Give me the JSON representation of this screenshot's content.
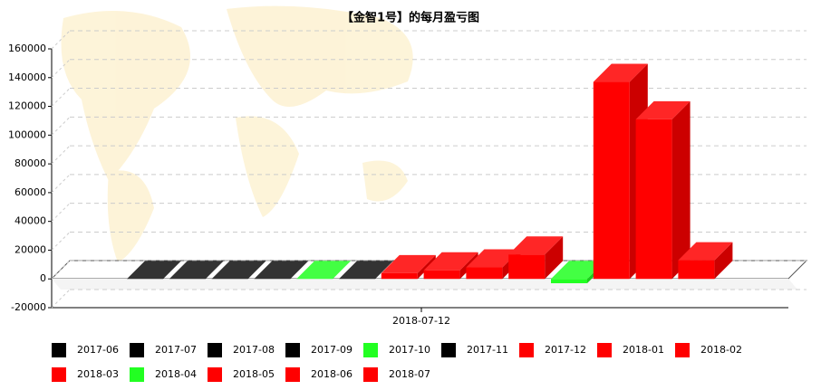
{
  "chart_data": {
    "type": "bar3d",
    "title": "【金智1号】的每月盈亏图",
    "categories": [
      "2018-07-12"
    ],
    "series": [
      {
        "name": "2017-06",
        "color": "#000000",
        "values": [
          0
        ]
      },
      {
        "name": "2017-07",
        "color": "#000000",
        "values": [
          0
        ]
      },
      {
        "name": "2017-08",
        "color": "#000000",
        "values": [
          0
        ]
      },
      {
        "name": "2017-09",
        "color": "#000000",
        "values": [
          0
        ]
      },
      {
        "name": "2017-10",
        "color": "#22ff22",
        "values": [
          0
        ]
      },
      {
        "name": "2017-11",
        "color": "#000000",
        "values": [
          0
        ]
      },
      {
        "name": "2017-12",
        "color": "#ff0000",
        "values": [
          4000
        ]
      },
      {
        "name": "2018-01",
        "color": "#ff0000",
        "values": [
          6000
        ]
      },
      {
        "name": "2018-02",
        "color": "#ff0000",
        "values": [
          8000
        ]
      },
      {
        "name": "2018-03",
        "color": "#ff0000",
        "values": [
          17000
        ]
      },
      {
        "name": "2018-04",
        "color": "#22ff22",
        "values": [
          -3000
        ]
      },
      {
        "name": "2018-05",
        "color": "#ff0000",
        "values": [
          137000
        ]
      },
      {
        "name": "2018-06",
        "color": "#ff0000",
        "values": [
          111000
        ]
      },
      {
        "name": "2018-07",
        "color": "#ff0000",
        "values": [
          13000
        ]
      }
    ],
    "ylim": [
      -20000,
      160000
    ],
    "yticks": [
      -20000,
      0,
      20000,
      40000,
      60000,
      80000,
      100000,
      120000,
      140000,
      160000
    ],
    "grid": true
  }
}
